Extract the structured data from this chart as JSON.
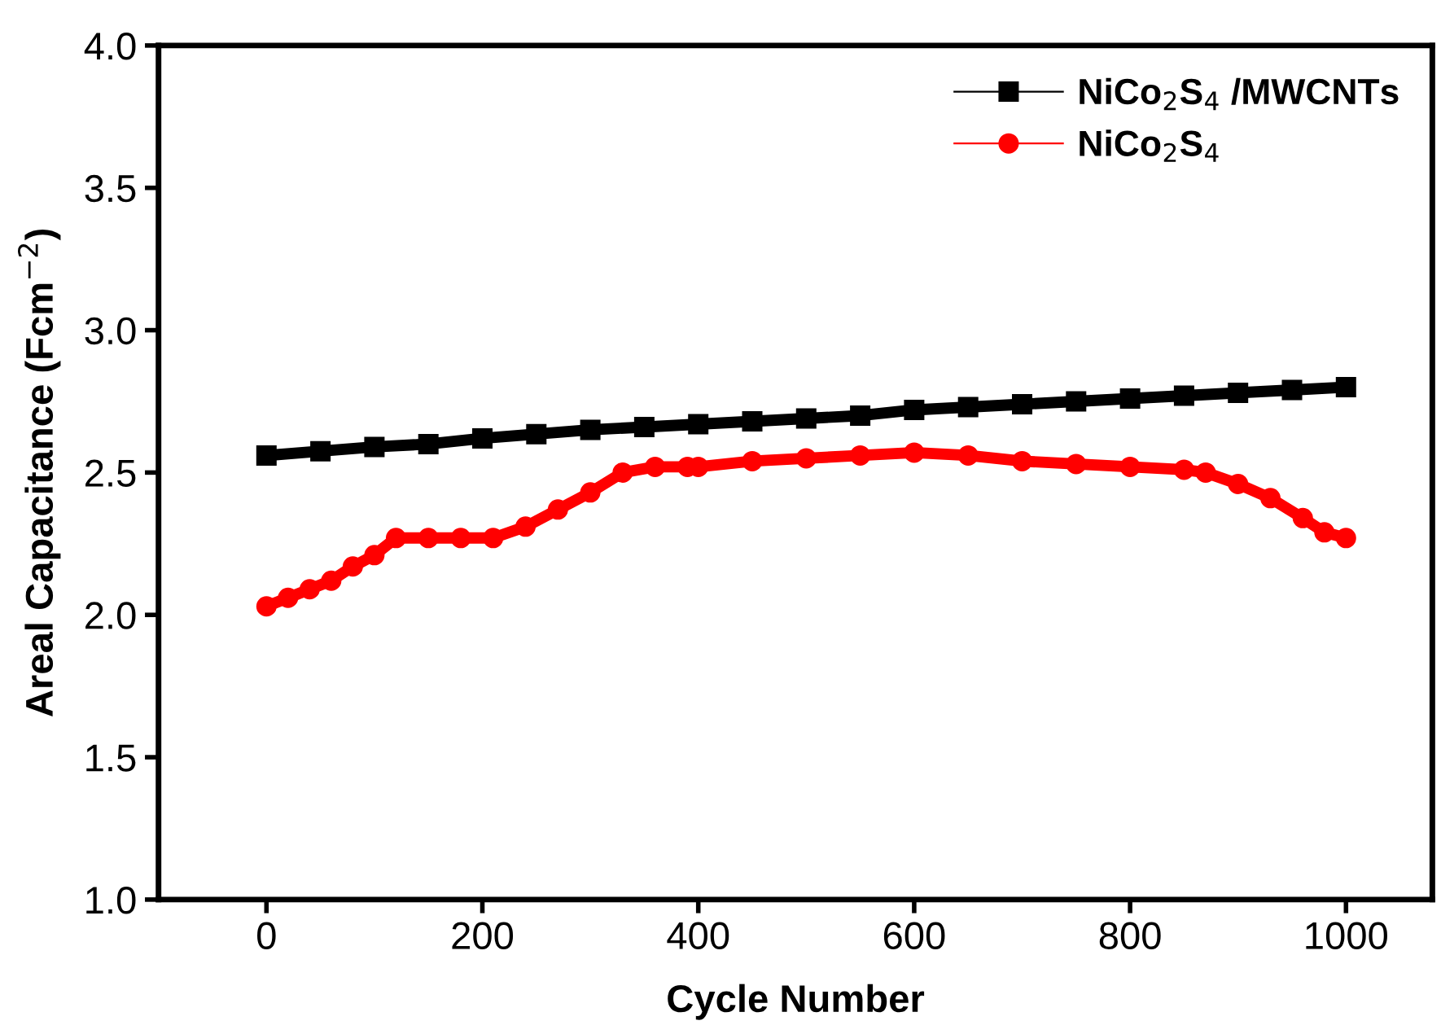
{
  "chart_data": {
    "type": "line",
    "xlabel": "Cycle Number",
    "ylabel": "Areal Capacitance (Fcm$^{−2}$)",
    "xlim": [
      -100,
      1080
    ],
    "xticks": [
      0,
      200,
      400,
      600,
      800,
      1000
    ],
    "ylim": [
      1.0,
      4.0
    ],
    "yticks": [
      {
        "value": 1.0,
        "label": "1.0"
      },
      {
        "value": 1.5,
        "label": "1.5"
      },
      {
        "value": 2.0,
        "label": "2.0"
      },
      {
        "value": 2.5,
        "label": "2.5"
      },
      {
        "value": 3.0,
        "label": "3.0"
      },
      {
        "value": 3.5,
        "label": "3.5"
      },
      {
        "value": 4.0,
        "label": "4.0"
      }
    ],
    "grid": false,
    "legend": "top right",
    "line_style": "solid",
    "series": [
      {
        "name": "NiCo$_{2}$S$_{4}$ /MWCNTs",
        "color": "#000000",
        "marker": "square",
        "x": [
          0,
          50,
          100,
          150,
          200,
          250,
          300,
          350,
          400,
          450,
          500,
          550,
          600,
          650,
          700,
          750,
          800,
          850,
          900,
          950,
          1000
        ],
        "values": [
          2.56,
          2.575,
          2.59,
          2.6,
          2.62,
          2.635,
          2.65,
          2.66,
          2.67,
          2.68,
          2.69,
          2.7,
          2.72,
          2.73,
          2.74,
          2.75,
          2.76,
          2.77,
          2.78,
          2.79,
          2.8
        ]
      },
      {
        "name": "NiCo$_{2}$S$_{4}$",
        "color": "#ff0000",
        "marker": "circle",
        "x": [
          0,
          20,
          40,
          60,
          80,
          100,
          120,
          150,
          180,
          210,
          240,
          270,
          300,
          330,
          360,
          390,
          400,
          450,
          500,
          550,
          600,
          650,
          700,
          750,
          800,
          850,
          870,
          900,
          930,
          960,
          980,
          1000
        ],
        "values": [
          2.03,
          2.06,
          2.09,
          2.12,
          2.17,
          2.21,
          2.27,
          2.27,
          2.27,
          2.27,
          2.31,
          2.37,
          2.43,
          2.5,
          2.52,
          2.52,
          2.52,
          2.54,
          2.55,
          2.56,
          2.57,
          2.56,
          2.54,
          2.53,
          2.52,
          2.51,
          2.5,
          2.46,
          2.41,
          2.34,
          2.29,
          2.27
        ]
      }
    ]
  }
}
